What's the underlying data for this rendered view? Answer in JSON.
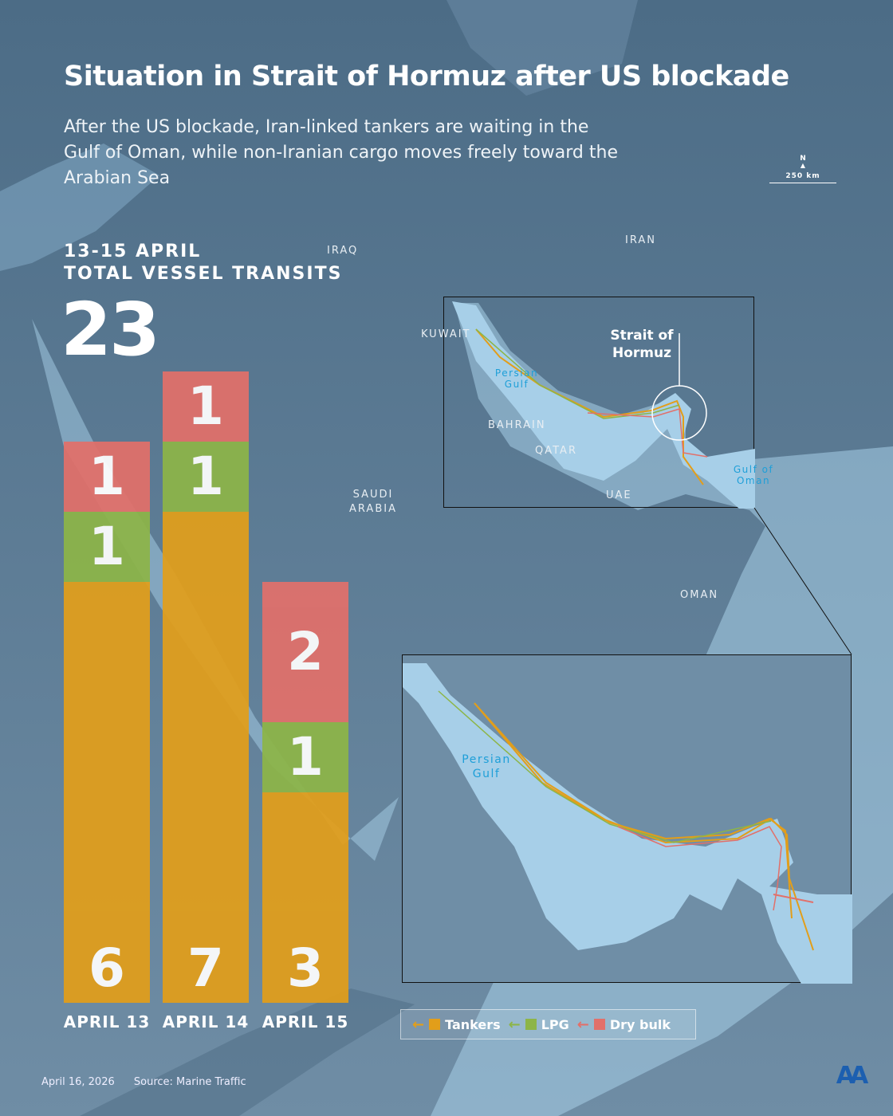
{
  "title": "Situation in Strait of Hormuz after US blockade",
  "subtitle": "After the US blockade, Iran-linked tankers are waiting in the Gulf of Oman, while non-Iranian cargo moves freely toward the Arabian Sea",
  "period": "13-15 APRIL",
  "total_label": "TOTAL VESSEL TRANSITS",
  "total": "23",
  "scale": {
    "north": "N",
    "distance": "250 km"
  },
  "map_labels": {
    "iraq": "IRAQ",
    "iran": "IRAN",
    "kuwait": "KUWAIT",
    "bahrain": "BAHRAIN",
    "qatar": "QATAR",
    "uae": "UAE",
    "saudi": "SAUDI ARABIA",
    "oman": "OMAN",
    "persian_gulf": "Persian Gulf",
    "gulf_of_oman": "Gulf of Oman",
    "strait": "Strait of Hormuz",
    "persian_gulf_inset": "Persian Gulf"
  },
  "colors": {
    "tankers": "#E29E1A",
    "lpg": "#8DB548",
    "dry_bulk": "#E2706A",
    "background": "#5d7d97",
    "water": "#a7cfe8"
  },
  "chart_data": {
    "type": "bar",
    "stacked": true,
    "categories": [
      "APRIL 13",
      "APRIL 14",
      "APRIL 15"
    ],
    "series": [
      {
        "name": "Tankers",
        "values": [
          6,
          7,
          3
        ]
      },
      {
        "name": "LPG",
        "values": [
          1,
          1,
          1
        ]
      },
      {
        "name": "Dry bulk",
        "values": [
          1,
          1,
          2
        ]
      }
    ],
    "ylim": [
      0,
      9
    ],
    "legend": "bottom-right"
  },
  "legend": [
    {
      "label": "Tankers",
      "icon": "arrow-left-icon"
    },
    {
      "label": "LPG",
      "icon": "arrow-left-icon"
    },
    {
      "label": "Dry bulk",
      "icon": "arrow-left-icon"
    }
  ],
  "footer": {
    "date": "April 16, 2026",
    "source": "Source: Marine Traffic",
    "logo": "AA"
  }
}
